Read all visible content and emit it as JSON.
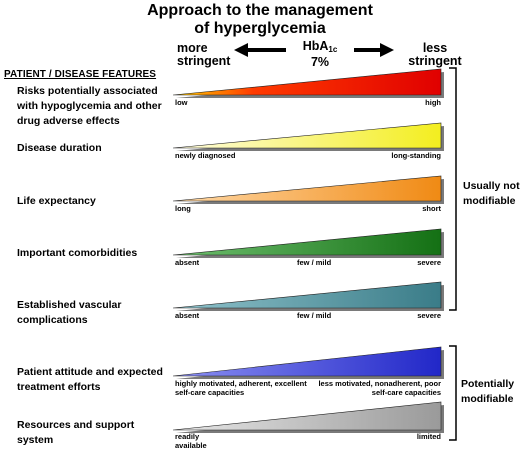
{
  "title": {
    "line1": "Approach to the management",
    "line2": "of hyperglycemia"
  },
  "scale": {
    "left_line1": "more",
    "left_line2": "stringent",
    "right_line1": "less",
    "right_line2": "stringent",
    "hba_main": "HbA",
    "hba_sub": "1c",
    "hba_value": "7%"
  },
  "features_header": "PATIENT / DISEASE FEATURES",
  "features": [
    {
      "label": "Risks potentially associated with hypoglycemia and other drug adverse effects",
      "color": "#e8140c",
      "left": "low",
      "mid": "",
      "right": "high"
    },
    {
      "label": "Disease duration",
      "color": "#f8f431",
      "left": "newly diagnosed",
      "mid": "",
      "right": "long-standing"
    },
    {
      "label": "Life expectancy",
      "color": "#f39323",
      "left": "long",
      "mid": "",
      "right": "short"
    },
    {
      "label": "Important comorbidities",
      "color": "#1d7a1d",
      "left": "absent",
      "mid": "few / mild",
      "right": "severe"
    },
    {
      "label": "Established vascular complications",
      "color": "#3f8390",
      "left": "absent",
      "mid": "few / mild",
      "right": "severe"
    },
    {
      "label": "Patient attitude and expected treatment efforts",
      "color": "#2a31d2",
      "left": "highly motivated, adherent, excellent self-care capacities",
      "mid": "",
      "right": "less motivated, nonadherent, poor self-care capacities"
    },
    {
      "label": "Resources and support system",
      "color": "#a5a5a5",
      "left": "readily available",
      "mid": "",
      "right": "limited"
    }
  ],
  "groups": [
    {
      "line1": "Usually not",
      "line2": "modifiable"
    },
    {
      "line1": "Potentially",
      "line2": "modifiable"
    }
  ]
}
